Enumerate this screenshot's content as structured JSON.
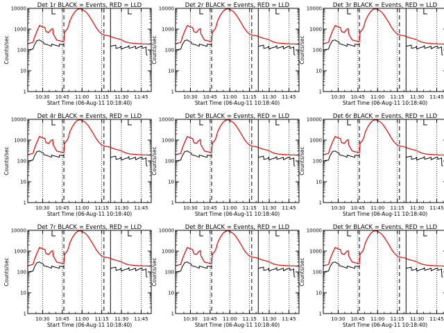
{
  "figure": {
    "name": "RHESSI detector count rates",
    "background": "#ffffff"
  },
  "chart_data": {
    "type": "line",
    "layout": "3x3 grid",
    "panel_titles": [
      "Det 1r BLACK = Events, RED = LLD",
      "Det 2r BLACK = Events, RED = LLD",
      "Det 3r BLACK = Events, RED = LLD",
      "Det 4r BLACK = Events, RED = LLD",
      "Det 5r BLACK = Events, RED = LLD",
      "Det 6r BLACK = Events, RED = LLD",
      "Det 7r BLACK = Events, RED = LLD",
      "Det 8r BLACK = Events, RED = LLD",
      "Det 9r BLACK = Events, RED = LLD"
    ],
    "xlabel": "Start Time (06-Aug-11 10:18:40)",
    "ylabel": "Counts/sec",
    "x_unit": "minutes after 10:18:40",
    "xlim": [
      0,
      94
    ],
    "ylim": [
      1,
      10000
    ],
    "y_scale": "log",
    "x_ticks": [
      {
        "value": 11.33,
        "label": "10:30"
      },
      {
        "value": 26.33,
        "label": "10:45"
      },
      {
        "value": 41.33,
        "label": "11:00"
      },
      {
        "value": 56.33,
        "label": "11:15"
      },
      {
        "value": 71.33,
        "label": "11:30"
      },
      {
        "value": 86.33,
        "label": "11:45"
      }
    ],
    "y_ticks": [
      {
        "value": 1,
        "label": "1"
      },
      {
        "value": 10,
        "label": "10"
      },
      {
        "value": 100,
        "label": "100"
      },
      {
        "value": 1000,
        "label": "1000"
      },
      {
        "value": 10000,
        "label": "10000"
      }
    ],
    "dotted_lines": [
      11.33,
      26.33,
      41.33,
      56.33,
      71.33,
      86.33
    ],
    "dashed_lines": [
      27.5,
      58
    ],
    "solid_lines": [
      63
    ],
    "series": [
      {
        "name": "LLD",
        "color": "#e00000",
        "x": [
          0,
          4,
          5,
          7,
          9,
          11,
          13,
          14,
          16,
          18,
          19,
          19.3,
          22,
          25,
          27.5,
          28,
          30,
          31,
          32,
          34,
          36,
          38,
          40,
          42,
          44,
          46,
          48,
          50,
          52,
          54,
          56,
          58,
          60,
          62,
          64,
          66,
          68,
          70,
          72,
          74,
          76,
          78,
          80,
          82,
          84,
          86,
          88,
          90,
          92,
          94
        ],
        "values": [
          200,
          230,
          380,
          800,
          1500,
          1300,
          1200,
          750,
          700,
          1000,
          1050,
          600,
          300,
          270,
          250,
          700,
          1000,
          1400,
          2500,
          4500,
          7000,
          9000,
          9500,
          8500,
          7000,
          5000,
          3200,
          2000,
          1200,
          800,
          600,
          520,
          500,
          470,
          420,
          380,
          350,
          330,
          290,
          250,
          230,
          215,
          210,
          205,
          200,
          200,
          195,
          195,
          190,
          190
        ]
      },
      {
        "name": "Events",
        "color": "#000000",
        "x": [
          0,
          4,
          5,
          7,
          9,
          11,
          12,
          12.2,
          15,
          18,
          18.2,
          21,
          24,
          24.2,
          27,
          27.5
        ],
        "values": [
          100,
          110,
          170,
          280,
          300,
          250,
          240,
          200,
          180,
          150,
          190,
          170,
          150,
          190,
          180,
          170
        ]
      },
      {
        "name": "Events",
        "color": "#000000",
        "x": [
          63,
          65,
          67,
          67.2,
          70,
          71,
          71.2,
          74,
          76,
          77,
          77.2,
          80,
          82,
          82.2,
          85,
          87,
          87.2,
          89,
          90,
          90.3,
          91
        ],
        "values": [
          150,
          160,
          170,
          120,
          130,
          150,
          110,
          130,
          140,
          160,
          120,
          135,
          150,
          115,
          140,
          155,
          120,
          130,
          140,
          60,
          55
        ]
      }
    ],
    "saa_markers": {
      "description": "short vertical line with horizontal tick at top of plot",
      "x": [
        18.5,
        76.5
      ]
    }
  }
}
